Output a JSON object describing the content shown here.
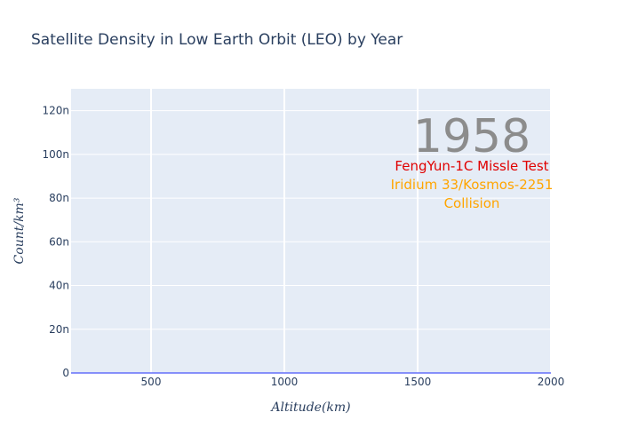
{
  "chart_data": {
    "type": "line",
    "title": "Satellite Density in Low Earth Orbit (LEO) by Year",
    "xlabel": "Altitude(km)",
    "ylabel": "Count/km³",
    "xlim": [
      200,
      2000
    ],
    "ylim": [
      0,
      1.3e-07
    ],
    "x_ticks": [
      500,
      1000,
      1500,
      2000
    ],
    "x_tick_labels": [
      "500",
      "1000",
      "1500",
      "2000"
    ],
    "y_ticks": [
      0,
      2e-08,
      4e-08,
      6e-08,
      8e-08,
      1e-07,
      1.2e-07
    ],
    "y_tick_labels": [
      "0",
      "20n",
      "40n",
      "60n",
      "80n",
      "100n",
      "120n"
    ],
    "grid": true,
    "series": [
      {
        "color": "#636efa",
        "x": [
          200,
          400,
          600,
          800,
          1000,
          1200,
          1400,
          1600,
          1800,
          2000
        ],
        "y": [
          0,
          0,
          0,
          0,
          0,
          0,
          0,
          0,
          0,
          0
        ]
      }
    ],
    "year_label": "1958",
    "annotations": [
      {
        "lines": [
          "FengYun-1C Missle Test"
        ],
        "color": "#e00000"
      },
      {
        "lines": [
          "Iridium 33/Kosmos-2251",
          "Collision"
        ],
        "color": "#ffa500"
      }
    ]
  },
  "colors": {
    "plot_bg": "#e5ecf6",
    "grid": "#ffffff",
    "text": "#2a3f5f"
  }
}
